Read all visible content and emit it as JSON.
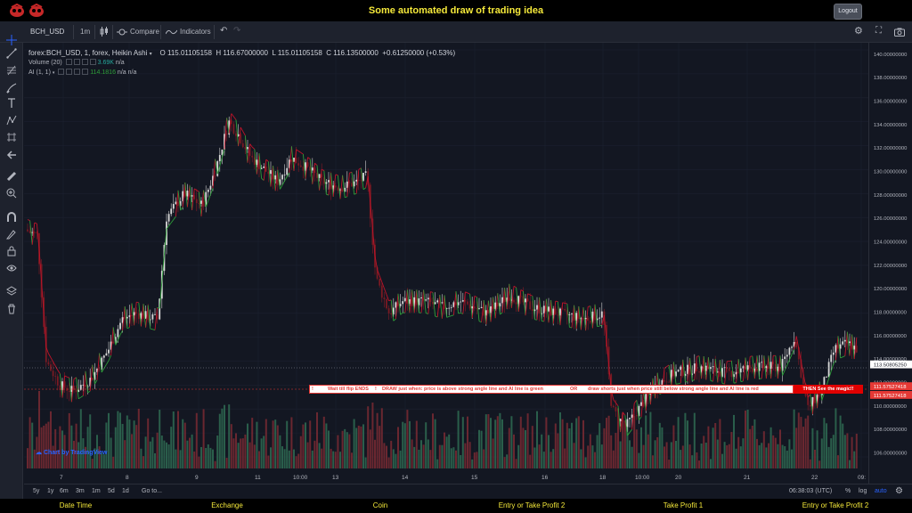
{
  "app": {
    "title": "Some automated draw of trading idea",
    "logout_label": "Logout"
  },
  "toolbar": {
    "symbol": "BCH_USD",
    "interval": "1m",
    "compare_label": "Compare",
    "indicators_label": "Indicators"
  },
  "legend": {
    "series_title": "forex:BCH_USD, 1, forex, Heikin Ashi",
    "open": "O 115.01105158",
    "high": "H 116.67000000",
    "low": "L 115.01105158",
    "close": "C 116.13500000",
    "change": "+0.61250000 (+0.53%)",
    "volume_label": "Volume (20)",
    "volume_value": "3.69K",
    "volume_na": "n/a",
    "ai_label": "AI (1, 1)",
    "ai_value": "114.1816",
    "ai_na1": "n/a",
    "ai_na2": "n/a"
  },
  "price_axis": {
    "ticks": [
      "140.00000000",
      "138.00000000",
      "136.00000000",
      "134.00000000",
      "132.00000000",
      "130.00000000",
      "128.00000000",
      "126.00000000",
      "124.00000000",
      "122.00000000",
      "120.00000000",
      "118.00000000",
      "116.00000000",
      "114.00000000",
      "112.00000000",
      "110.00000000",
      "108.00000000",
      "106.00000000"
    ],
    "current_price": "113.50805250",
    "red_label_1": "111.57527418",
    "red_label_2": "111.57527418"
  },
  "time_axis": {
    "ticks": [
      "7",
      "8",
      "9",
      "11",
      "10:00",
      "13",
      "14",
      "15",
      "16",
      "18",
      "10:00",
      "20",
      "21",
      "22",
      "09:"
    ]
  },
  "banner": {
    "part1": "Wait till flip ENDS",
    "part2": "DRAW just when:  price is above strong angle line and AI line is green",
    "part3": "OR",
    "part4": "draw shorts just when price still below strong angle line and AI line is red",
    "cta": "THEN See the magic!!"
  },
  "watermark": "Chart by TradingView",
  "range_bar": {
    "ranges": [
      "5y",
      "1y",
      "6m",
      "3m",
      "1m",
      "5d",
      "1d"
    ],
    "goto": "Go to...",
    "clock": "06:38:03 (UTC)",
    "pct": "%",
    "log": "log",
    "auto": "auto"
  },
  "footer": {
    "items": [
      "Date Time",
      "Exchange",
      "Coin",
      "Entry or Take Profit 2",
      "Take Profit 1",
      "Entry or Take Profit 2"
    ]
  },
  "colors": {
    "background": "#131722",
    "footer_text": "#f5e93a",
    "up_candle": "#e8e8e8",
    "down_candle": "#7a1a22",
    "ai_green": "#2e9e3a",
    "ai_red": "#c0142a",
    "volume_green": "#2f6b52",
    "volume_red": "#7a2a33"
  },
  "icons": [
    "crosshair-icon",
    "trend-line-icon",
    "fib-icon",
    "brush-icon",
    "text-icon",
    "pattern-icon",
    "measure-icon",
    "arrow-icon",
    "ruler-icon",
    "zoom-icon",
    "magnet-icon",
    "lock-icon",
    "visibility-icon",
    "layers-icon",
    "trash-icon"
  ]
}
